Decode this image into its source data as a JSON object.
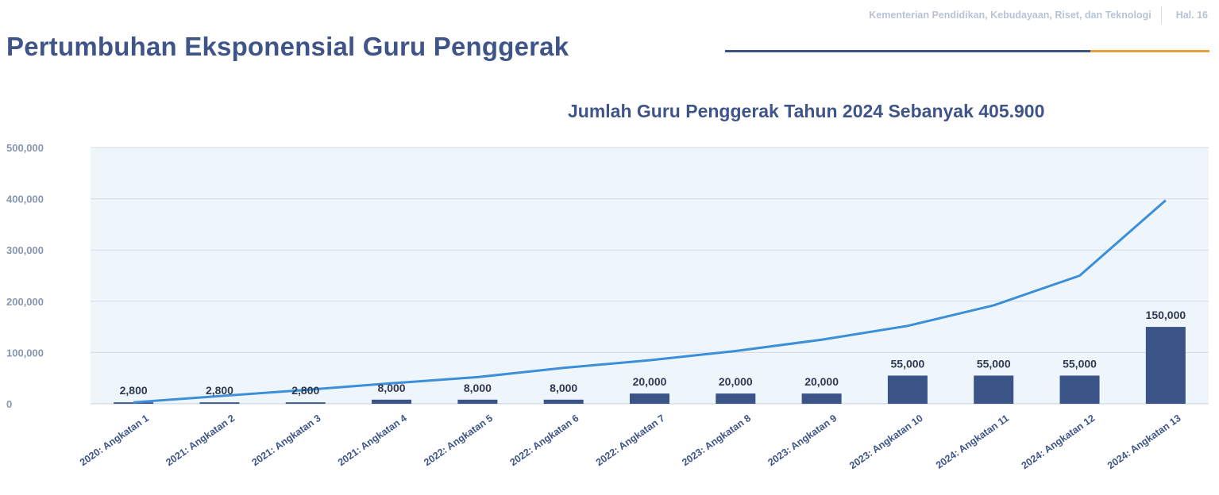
{
  "header": {
    "ministry": "Kementerian Pendidikan, Kebudayaan, Riset, dan Teknologi",
    "page": "Hal. 16"
  },
  "page_title": "Pertumbuhan Eksponensial Guru Penggerak",
  "colors": {
    "title": "#3f5588",
    "bar": "#3a5487",
    "line": "#3b8fd9",
    "plot_background": "#eef5fb",
    "rule_blue": "#3a5487",
    "rule_orange": "#e8a23b"
  },
  "chart_data": {
    "type": "bar",
    "title": "Jumlah Guru Penggerak Tahun 2024 Sebanyak 405.900",
    "xlabel": "",
    "ylabel": "",
    "ylim": [
      0,
      500000
    ],
    "yticks": [
      0,
      100000,
      200000,
      300000,
      400000,
      500000
    ],
    "ytick_labels": [
      "0",
      "100,000",
      "200,000",
      "300,000",
      "400,000",
      "500,000"
    ],
    "grid": true,
    "categories": [
      "2020: Angkatan 1",
      "2021: Angkatan 2",
      "2021: Angkatan 3",
      "2021: Angkatan 4",
      "2022: Angkatan 5",
      "2022: Angkatan 6",
      "2022: Angkatan 7",
      "2023: Angkatan 8",
      "2023: Angkatan 9",
      "2023: Angkatan 10",
      "2024: Angkatan 11",
      "2024: Angkatan 12",
      "2024: Angkatan 13"
    ],
    "series": [
      {
        "type": "bar",
        "values": [
          2800,
          2800,
          2800,
          8000,
          8000,
          8000,
          20000,
          20000,
          20000,
          55000,
          55000,
          55000,
          150000
        ],
        "data_labels": [
          "2,800",
          "2,800",
          "2,800",
          "8,000",
          "8,000",
          "8,000",
          "20,000",
          "20,000",
          "20,000",
          "55,000",
          "55,000",
          "55,000",
          "150,000"
        ]
      },
      {
        "type": "line",
        "values": [
          2800,
          15000,
          27000,
          40000,
          52000,
          70000,
          85000,
          103000,
          125000,
          152000,
          192000,
          250000,
          397000
        ]
      }
    ]
  }
}
